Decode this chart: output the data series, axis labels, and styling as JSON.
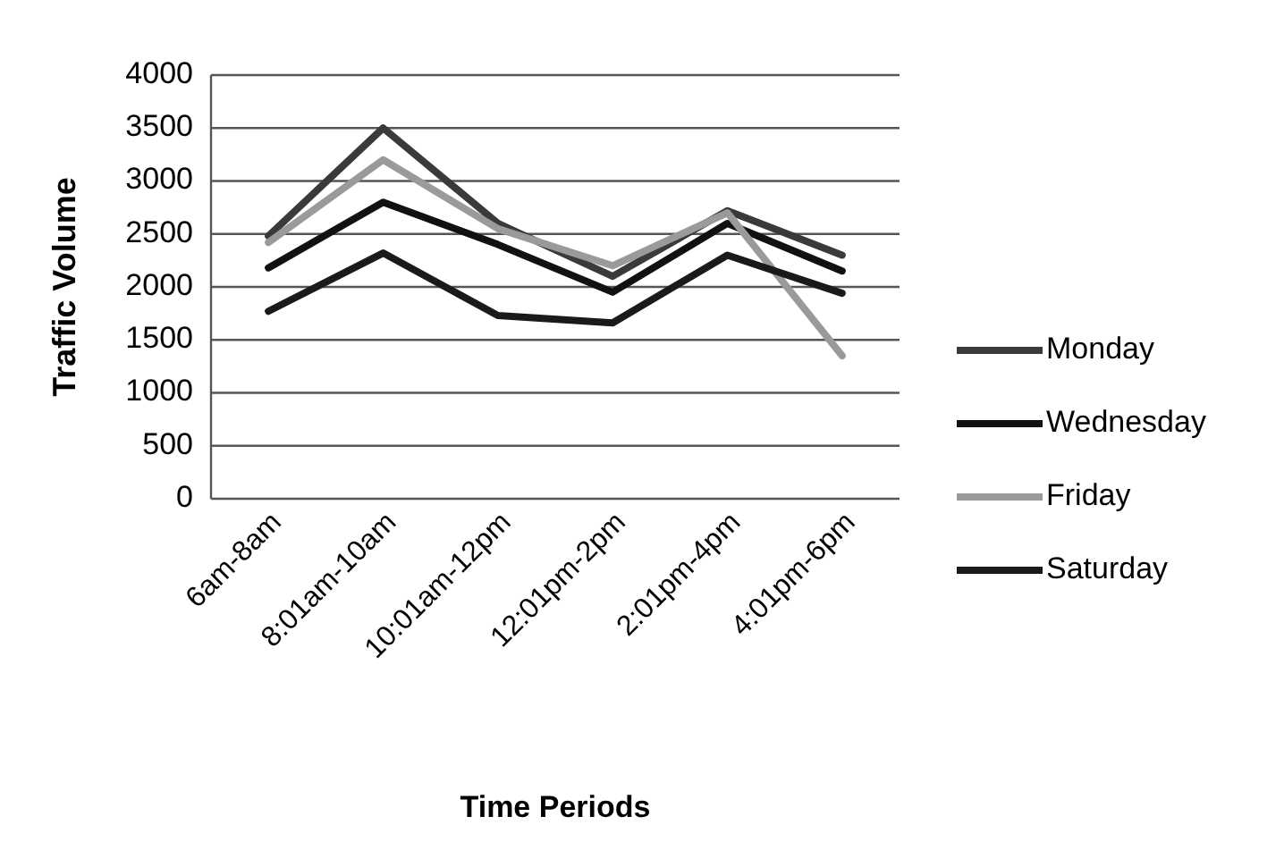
{
  "chart_data": {
    "type": "line",
    "xlabel": "Time Periods",
    "ylabel": "Traffic Volume",
    "categories": [
      "6am-8am",
      "8:01am-10am",
      "10:01am-12pm",
      "12:01pm-2pm",
      "2:01pm-4pm",
      "4:01pm-6pm"
    ],
    "series": [
      {
        "name": "Monday",
        "color": "#3a3a3a",
        "values": [
          2480,
          3500,
          2600,
          2100,
          2720,
          2300
        ]
      },
      {
        "name": "Wednesday",
        "color": "#111111",
        "values": [
          2180,
          2800,
          2400,
          1950,
          2600,
          2150
        ]
      },
      {
        "name": "Friday",
        "color": "#9a9a9a",
        "values": [
          2420,
          3200,
          2550,
          2200,
          2700,
          1350
        ]
      },
      {
        "name": "Saturday",
        "color": "#1a1a1a",
        "values": [
          1770,
          2320,
          1730,
          1660,
          2300,
          1940
        ]
      }
    ],
    "ylim": [
      0,
      4000
    ],
    "yticks": [
      0,
      500,
      1000,
      1500,
      2000,
      2500,
      3000,
      3500,
      4000
    ],
    "grid": "y",
    "legend": "right",
    "line_style": "solid",
    "marker": "none"
  }
}
